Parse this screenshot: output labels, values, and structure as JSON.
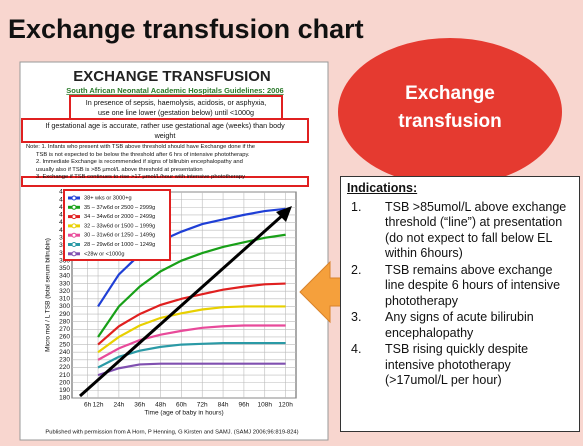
{
  "title": "Exchange transfusion chart",
  "callout": "Exchange transfusion",
  "indications": {
    "heading": "Indications:",
    "items": [
      {
        "number": "1.",
        "text": "TSB >85umol/L above exchange threshold (“line”) at presentation (do not expect to fall below EL within 6hours)"
      },
      {
        "number": "2.",
        "text": "TSB remains above exchange line despite 6 hours of intensive phototherapy"
      },
      {
        "number": "3.",
        "text": "Any signs of acute bilirubin encephalopathy"
      },
      {
        "number": "4.",
        "text": "TSB rising quickly despite intensive phototherapy (>17umol/L per hour)"
      }
    ]
  },
  "chart_data": {
    "type": "line",
    "title": "EXCHANGE TRANSFUSION",
    "subtitle": "South African Neonatal Academic Hospitals Guidelines: 2006",
    "header_lines": [
      "In presence of sepsis, haemolysis, acidosis, or asphyxia,",
      "use one line lower (gestation below) until <1000g",
      "If gestational age is accurate, rather use gestational age (weeks) than body",
      "weight"
    ],
    "notes": [
      "Note:   1.  Infants who present with TSB above threshold should have Exchange done if the",
      "TSB is not expected to be below the threshold after 6 hrs of intensive phototherapy.",
      "2. Immediate Exchange is recommended if signs of bilirubin encephalopathy and",
      "usually also if TSB is >85 µmol/L above threshold at presentation",
      "3. Exchange if TSB continues to rise >17 µmol/L/hour with intensive phototherapy"
    ],
    "footer": "Published with permission from A Horn, P Henning, G Kirsten and SAMJ.      (SAMJ 2006;96:819-824)",
    "x_label": "Time (age of baby in hours)",
    "y_label": "Micro mol / L TSB (total serum bilirubin)",
    "x": [
      12,
      24,
      36,
      48,
      60,
      72,
      84,
      96,
      108,
      120
    ],
    "xlim": [
      -3,
      126
    ],
    "xticks": [
      {
        "value": 6,
        "label": "6h"
      },
      {
        "value": 12,
        "label": "12h"
      },
      {
        "value": 24,
        "label": "24h"
      },
      {
        "value": 36,
        "label": "36h"
      },
      {
        "value": 48,
        "label": "48h"
      },
      {
        "value": 60,
        "label": "60h"
      },
      {
        "value": 72,
        "label": "72h"
      },
      {
        "value": 84,
        "label": "84h"
      },
      {
        "value": 96,
        "label": "96h"
      },
      {
        "value": 108,
        "label": "108h"
      },
      {
        "value": 120,
        "label": "120h"
      }
    ],
    "ylim": [
      180,
      450
    ],
    "yticks": [
      180,
      190,
      200,
      210,
      220,
      230,
      240,
      250,
      260,
      270,
      280,
      290,
      300,
      310,
      320,
      330,
      340,
      350,
      360,
      370,
      380,
      390,
      400,
      410,
      420,
      430,
      440,
      450
    ],
    "grid": true,
    "series": [
      {
        "name": "38+ wks or 3000+g",
        "color": "#1f3fd6",
        "values": [
          300,
          342,
          368,
          386,
          398,
          408,
          414,
          420,
          425,
          428
        ]
      },
      {
        "name": "35 – 37w6d or 2500 – 2999g",
        "color": "#18a018",
        "values": [
          260,
          300,
          326,
          346,
          360,
          370,
          378,
          384,
          390,
          394
        ]
      },
      {
        "name": "34 – 34w6d or 2000 – 2499g",
        "color": "#e02020",
        "values": [
          250,
          274,
          290,
          302,
          310,
          316,
          322,
          326,
          329,
          330
        ]
      },
      {
        "name": "32 – 33w6d or 1500 – 1999g",
        "color": "#e8d000",
        "values": [
          240,
          260,
          275,
          285,
          291,
          296,
          299,
          300,
          300,
          300
        ]
      },
      {
        "name": "30 – 31w6d or 1250 – 1499g",
        "color": "#e84a9a",
        "values": [
          230,
          245,
          256,
          263,
          268,
          272,
          274,
          275,
          275,
          275
        ]
      },
      {
        "name": "28 – 29w6d or 1000 – 1249g",
        "color": "#2a9aa6",
        "values": [
          220,
          234,
          242,
          247,
          250,
          251,
          252,
          252,
          252,
          252
        ]
      },
      {
        "name": "<28w or <1000g",
        "color": "#8050b0",
        "values": [
          210,
          219,
          224,
          225,
          225,
          225,
          225,
          225,
          225,
          225
        ]
      }
    ]
  }
}
